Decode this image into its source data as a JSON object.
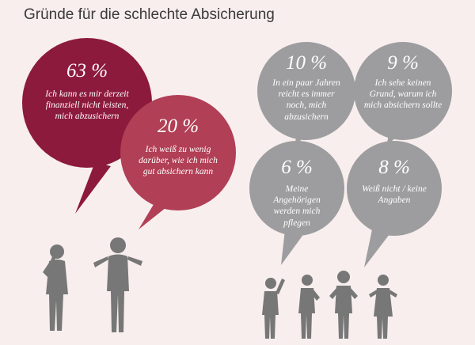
{
  "title": "Gründe für die schlechte Absicherung",
  "colors": {
    "background": "#f8eeee",
    "dark_red": "#8c1a3c",
    "red": "#b13f55",
    "grey": "#9d9d9f",
    "figure": "#777777"
  },
  "chart_data": {
    "type": "bubble-infographic",
    "title": "Gründe für die schlechte Absicherung",
    "items": [
      {
        "value": 63,
        "label": "63 %",
        "text": "Ich kann es mir derzeit finanziell nicht leisten, mich abzusichern",
        "color": "#8c1a3c"
      },
      {
        "value": 20,
        "label": "20 %",
        "text": "Ich weiß zu wenig darüber, wie ich mich gut absichern kann",
        "color": "#b13f55"
      },
      {
        "value": 10,
        "label": "10 %",
        "text": "In ein paar Jahren reicht es immer noch, mich abzusichern",
        "color": "#9d9d9f"
      },
      {
        "value": 9,
        "label": "9 %",
        "text": "Ich sehe keinen Grund, warum ich mich absichern sollte",
        "color": "#9d9d9f"
      },
      {
        "value": 6,
        "label": "6 %",
        "text": "Meine Angehörigen werden mich pflegen",
        "color": "#9d9d9f"
      },
      {
        "value": 8,
        "label": "8 %",
        "text": "Weiß nicht / keine Angaben",
        "color": "#9d9d9f"
      }
    ]
  }
}
